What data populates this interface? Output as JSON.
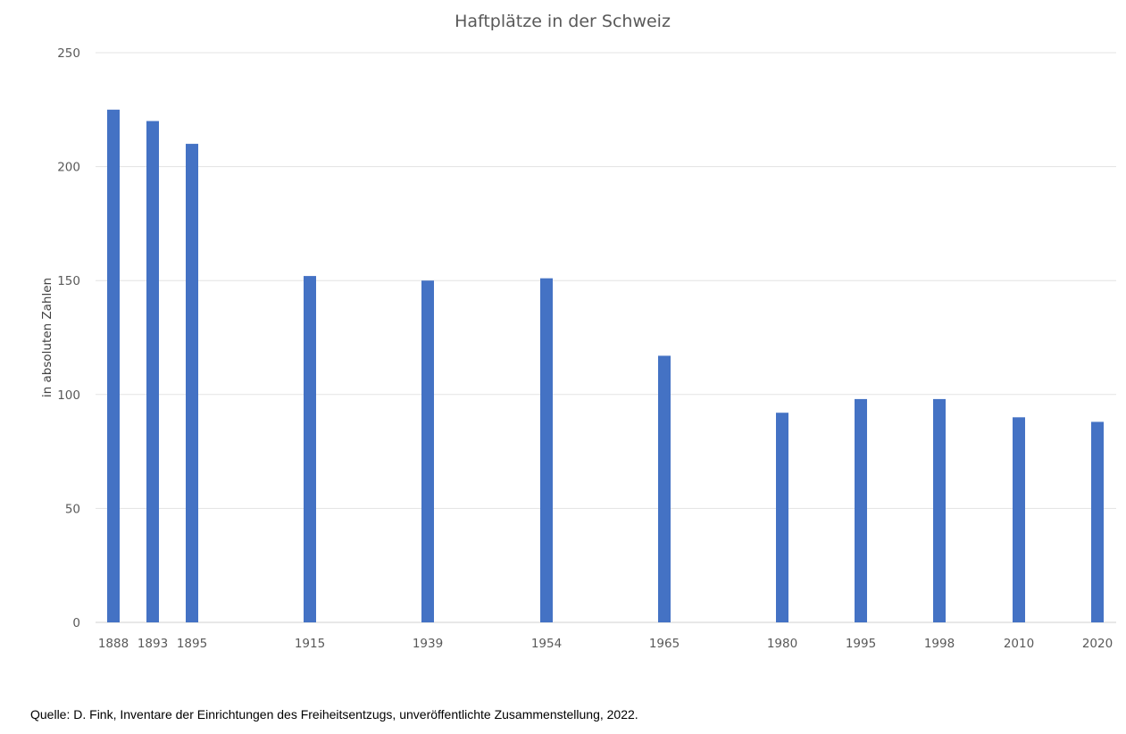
{
  "chart_data": {
    "type": "bar",
    "title": "Haftplätze in der Schweiz",
    "xlabel": "",
    "ylabel": "in absoluten Zahlen",
    "categories": [
      "1888",
      "1893",
      "1895",
      "1915",
      "1939",
      "1954",
      "1965",
      "1980",
      "1995",
      "1998",
      "2010",
      "2020"
    ],
    "values": [
      225,
      220,
      210,
      152,
      150,
      151,
      117,
      92,
      98,
      98,
      90,
      88
    ],
    "ylim": [
      0,
      250
    ],
    "yticks": [
      "0",
      "50",
      "100",
      "150",
      "200",
      "250"
    ],
    "grid": true,
    "legend": "none",
    "bar_color": "#4472C4"
  },
  "source": "Quelle: D. Fink, Inventare der Einrichtungen des Freiheitsentzugs, unveröffentlichte Zusammenstellung, 2022."
}
